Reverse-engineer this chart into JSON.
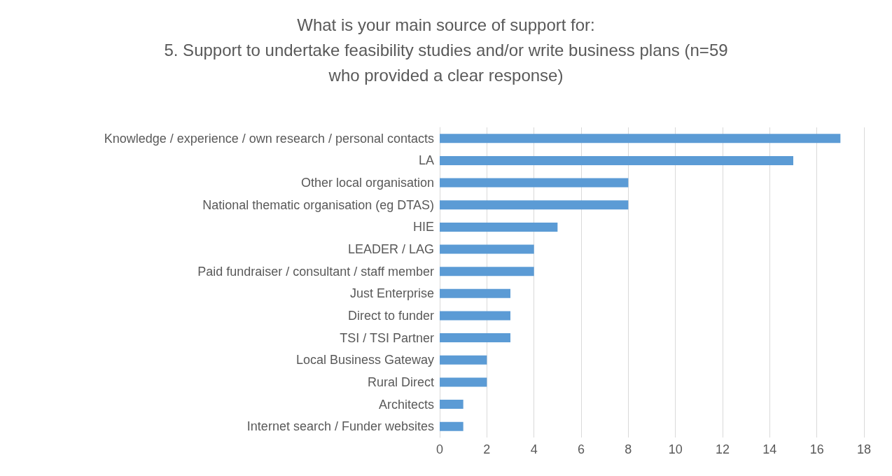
{
  "chart_data": {
    "type": "bar",
    "orientation": "horizontal",
    "title": "What is your main source of support for:\n5. Support to undertake feasibility studies and/or write business plans (n=59\nwho provided a clear response)",
    "categories": [
      "Knowledge / experience / own research / personal contacts",
      "LA",
      "Other local organisation",
      "National thematic organisation (eg DTAS)",
      "HIE",
      "LEADER / LAG",
      "Paid fundraiser / consultant / staff member",
      "Just Enterprise",
      "Direct to funder",
      "TSI / TSI Partner",
      "Local Business Gateway",
      "Rural Direct",
      "Architects",
      "Internet search / Funder websites"
    ],
    "values": [
      17,
      15,
      8,
      8,
      5,
      4,
      4,
      3,
      3,
      3,
      2,
      2,
      1,
      1
    ],
    "color": "#5b9bd5",
    "xlim": [
      0,
      18
    ],
    "xticks": [
      0,
      2,
      4,
      6,
      8,
      10,
      12,
      14,
      16,
      18
    ],
    "grid": "x"
  }
}
